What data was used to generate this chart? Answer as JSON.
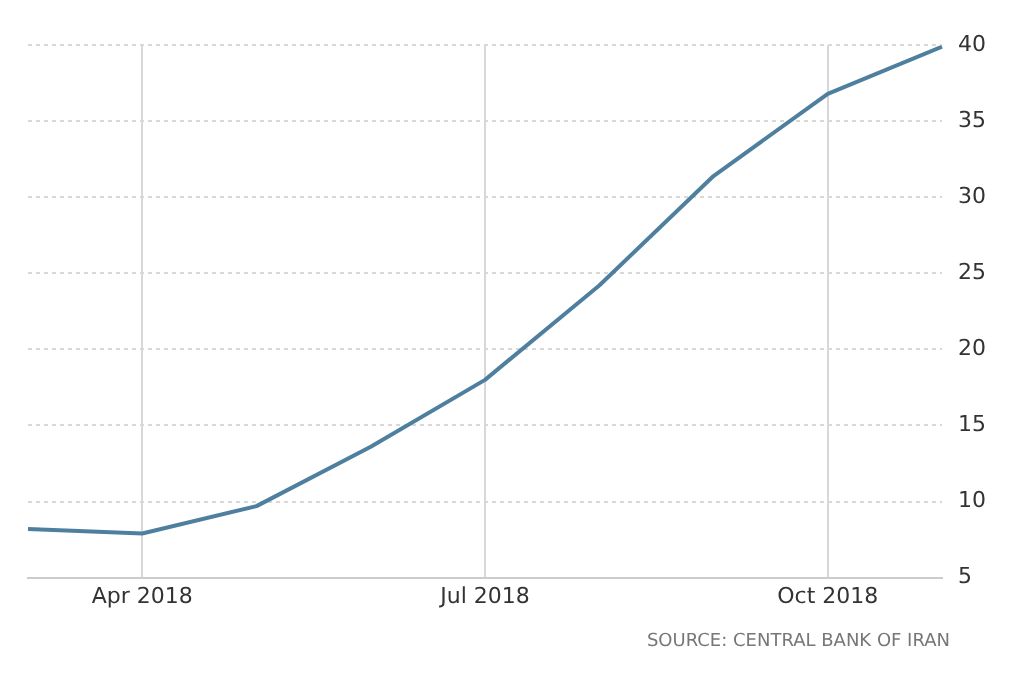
{
  "chart_data": {
    "type": "line",
    "categories": [
      null,
      "Apr 2018",
      null,
      null,
      "Jul 2018",
      null,
      null,
      "Oct 2018",
      null
    ],
    "series": [
      {
        "color": "#4f7f9e",
        "values": [
          8.2,
          7.9,
          9.7,
          13.6,
          18,
          24.2,
          31.4,
          36.8,
          39.9
        ]
      }
    ],
    "ylim": [
      5,
      40
    ],
    "yticks": [
      5,
      10,
      15,
      20,
      25,
      30,
      35,
      40
    ],
    "grid": true,
    "legend": false,
    "marker": "none",
    "line_style": "solid",
    "annotations": [
      "SOURCE: CENTRAL BANK OF IRAN"
    ]
  }
}
